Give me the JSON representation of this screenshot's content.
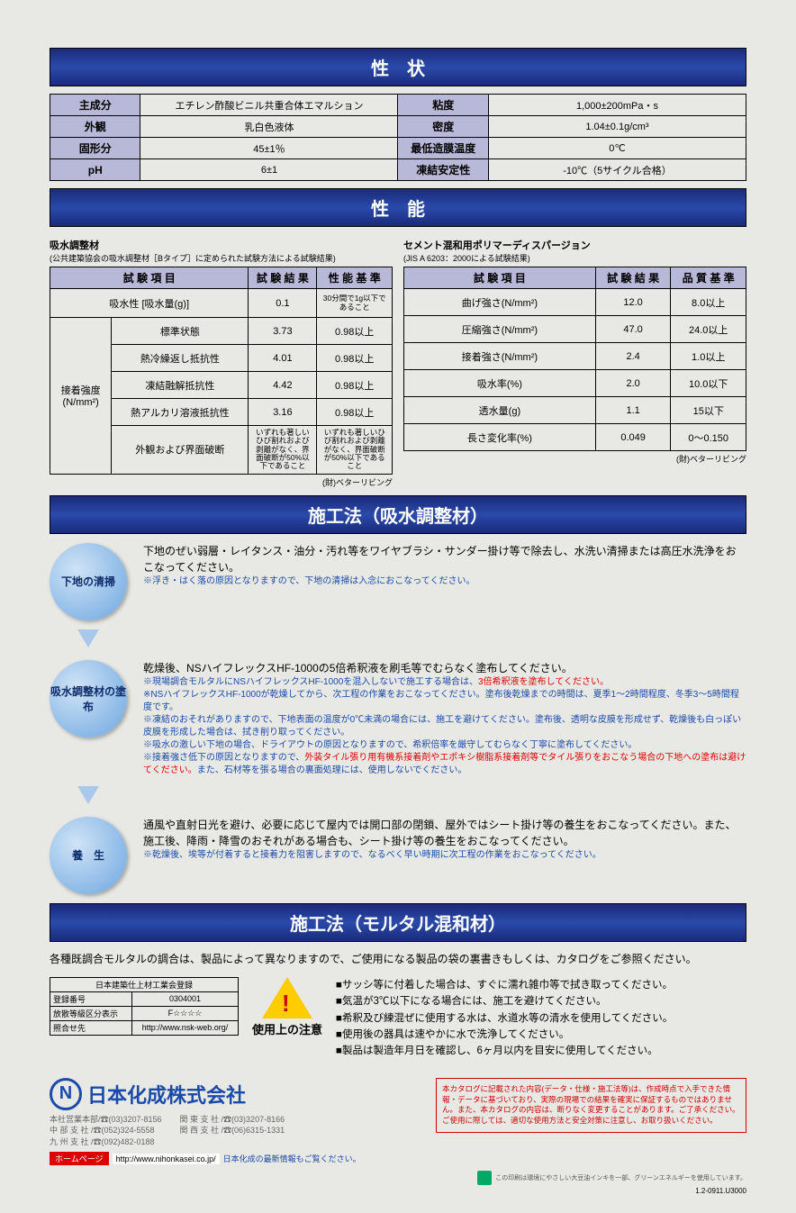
{
  "banners": {
    "properties": "性　状",
    "performance": "性　能",
    "construction1": "施工法（吸水調整材）",
    "construction2": "施工法（モルタル混和材）"
  },
  "props_table": {
    "r1l": "主成分",
    "r1v": "エチレン酢酸ビニル共重合体エマルション",
    "r1l2": "粘度",
    "r1v2": "1,000±200mPa・s",
    "r2l": "外観",
    "r2v": "乳白色液体",
    "r2l2": "密度",
    "r2v2": "1.04±0.1g/cm³",
    "r3l": "固形分",
    "r3v": "45±1％",
    "r3l2": "最低造膜温度",
    "r3v2": "0℃",
    "r4l": "pH",
    "r4v": "6±1",
    "r4l2": "凍結安定性",
    "r4v2": "-10℃（5サイクル合格）"
  },
  "perf_left": {
    "title": "吸水調整材",
    "subtitle": "(公共建築協会の吸水調整材［Bタイプ］に定められた試験方法による試験結果)",
    "h1": "試 験 項 目",
    "h2": "試 験 結 果",
    "h3": "性 能 基 準",
    "r1a": "吸水性 [吸水量(g)]",
    "r1b": "0.1",
    "r1c": "30分間で1g以下であること",
    "group": "接着強度\n(N/mm²)",
    "r2a": "標準状態",
    "r2b": "3.73",
    "r2c": "0.98以上",
    "r3a": "熱冷繰返し抵抗性",
    "r3b": "4.01",
    "r3c": "0.98以上",
    "r4a": "凍結融解抵抗性",
    "r4b": "4.42",
    "r4c": "0.98以上",
    "r5a": "熱アルカリ溶液抵抗性",
    "r5b": "3.16",
    "r5c": "0.98以上",
    "r6a": "外観および界面破断",
    "r6b": "いずれも著しいひび割れおよび剥離がなく、界面破断が50%以下であること",
    "r6c": "いずれも著しいひび割れおよび剥離がなく、界面破断が50%以下であること",
    "source": "(財)ベターリビング"
  },
  "perf_right": {
    "title": "セメント混和用ポリマーディスパージョン",
    "subtitle": "(JIS A 6203：2000による試験結果)",
    "h1": "試 験 項 目",
    "h2": "試 験 結 果",
    "h3": "品 質 基 準",
    "rows": [
      {
        "a": "曲げ強さ(N/mm²)",
        "b": "12.0",
        "c": "8.0以上"
      },
      {
        "a": "圧縮強さ(N/mm²)",
        "b": "47.0",
        "c": "24.0以上"
      },
      {
        "a": "接着強さ(N/mm²)",
        "b": "2.4",
        "c": "1.0以上"
      },
      {
        "a": "吸水率(%)",
        "b": "2.0",
        "c": "10.0以下"
      },
      {
        "a": "透水量(g)",
        "b": "1.1",
        "c": "15以下"
      },
      {
        "a": "長さ変化率(%)",
        "b": "0.049",
        "c": "0～0.150"
      }
    ],
    "source": "(財)ベターリビング"
  },
  "steps": {
    "s1": {
      "label": "下地の清掃",
      "text": "下地のぜい弱層・レイタンス・油分・汚れ等をワイヤブラシ・サンダー掛け等で除去し、水洗い清掃または高圧水洗浄をおこなってください。",
      "note1": "※浮き・はく落の原因となりますので、下地の清掃は入念におこなってください。"
    },
    "s2": {
      "label": "吸水調整材の塗布",
      "text": "乾燥後、NSハイフレックスHF-1000の5倍希釈液を刷毛等でむらなく塗布してください。",
      "notes": [
        {
          "t": "※現場調合モルタルにNSハイフレックスHF-1000を混入しないで施工する場合は、",
          "red": "3倍希釈液を塗布してください。"
        },
        {
          "t": "※NSハイフレックスHF-1000が乾燥してから、次工程の作業をおこなってください。塗布後乾燥までの時間は、夏季1～2時間程度、冬季3～5時間程度です。"
        },
        {
          "t": "※凍結のおそれがありますので、下地表面の温度が0℃未満の場合には、施工を避けてください。塗布後、透明な皮膜を形成せず、乾燥後も白っぽい皮膜を形成した場合は、拭き削り取ってください。"
        },
        {
          "t": "※吸水の激しい下地の場合、ドライアウトの原因となりますので、希釈倍率を厳守してむらなく丁寧に塗布してください。"
        },
        {
          "t": "※接着強さ低下の原因となりますので、",
          "red": "外装タイル張り用有機系接着剤やエポキシ樹脂系接着剤等でタイル張りをおこなう場合の下地への塗布は避けてください。",
          "t2": "また、石材等を張る場合の裏面処理には、使用しないでください。"
        }
      ]
    },
    "s3": {
      "label": "養　生",
      "text": "通風や直射日光を避け、必要に応じて屋内では開口部の閉鎖、屋外ではシート掛け等の養生をおこなってください。また、施工後、降雨・降雪のおそれがある場合も、シート掛け等の養生をおこなってください。",
      "note1": "※乾燥後、埃等が付着すると接着力を阻害しますので、なるべく早い時期に次工程の作業をおこなってください。"
    }
  },
  "mortar_text": "各種既調合モルタルの調合は、製品によって異なりますので、ご使用になる製品の袋の裏書きもしくは、カタログをご参照ください。",
  "reg": {
    "title": "日本建築仕上材工業会登録",
    "r1a": "登録番号",
    "r1b": "0304001",
    "r2a": "放散等級区分表示",
    "r2b": "F☆☆☆☆",
    "r3a": "照合せ先",
    "r3b": "http://www.nsk-web.org/"
  },
  "caution_label": "使用上の注意",
  "caution_items": [
    "■サッシ等に付着した場合は、すぐに濡れ雑巾等で拭き取ってください。",
    "■気温が3℃以下になる場合には、施工を避けてください。",
    "■希釈及び練混ぜに使用する水は、水道水等の清水を使用してください。",
    "■使用後の器具は速やかに水で洗浄してください。",
    "■製品は製造年月日を確認し、6ヶ月以内を目安に使用してください。"
  ],
  "footer": {
    "company": "日本化成株式会社",
    "contacts_left": "本社営業本部/☎(03)3207-8156\n中 部 支 社 /☎(052)324-5558\n九 州 支 社 /☎(092)482-0188",
    "contacts_right": "関 東 支 社 /☎(03)3207-8166\n関 西 支 社 /☎(06)6315-1331",
    "hp_label": "ホームページ",
    "hp_url": "http://www.nihonkasei.co.jp/",
    "hp_jp": "日本化成の最新情報もご覧ください。",
    "disclaimer": "本カタログに記載された内容(データ・仕様・施工法等)は、作成時点で入手できた情報・データに基づいており、実際の現場での結果を確実に保証するものではありません。また、本カタログの内容は、断りなく変更することがあります。ご了承ください。ご使用に際しては、適切な使用方法と安全対策に注意し、お取り扱いください。",
    "soy": "この印刷は環境にやさしい大豆油インキを一部、グリーンエネルギーを使用しています。",
    "docno": "1.2-0911.U3000"
  }
}
